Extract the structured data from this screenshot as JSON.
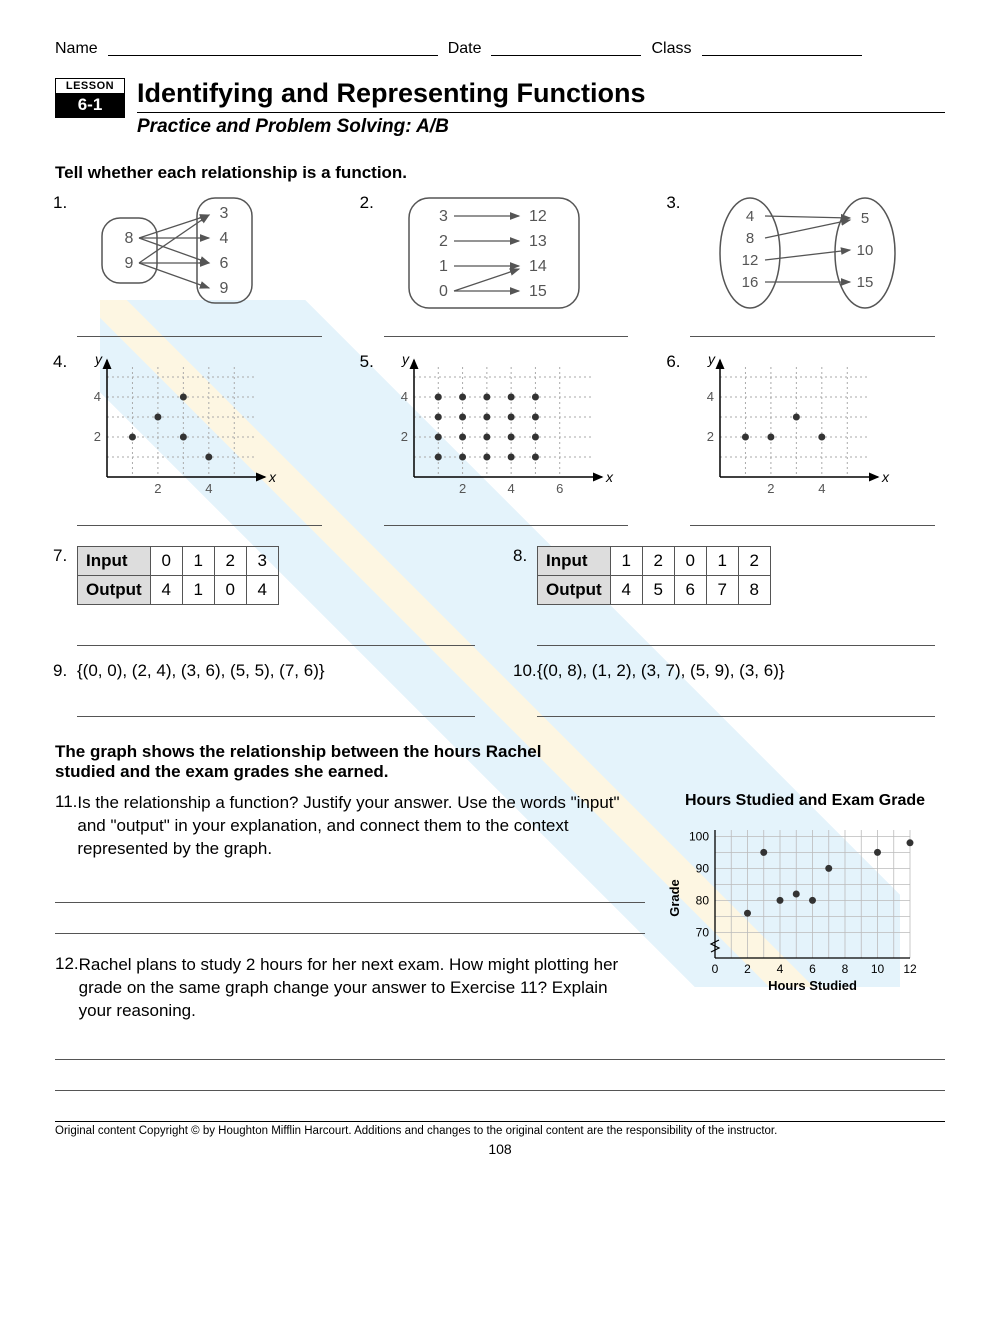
{
  "header": {
    "name_label": "Name",
    "date_label": "Date",
    "class_label": "Class"
  },
  "lesson": {
    "badge_top": "LESSON",
    "badge_num": "6-1",
    "title": "Identifying and Representing Functions",
    "subtitle": "Practice and Problem Solving: A/B"
  },
  "section1_heading": "Tell whether each relationship is a function.",
  "map1": {
    "left": [
      "8",
      "9"
    ],
    "right": [
      "3",
      "4",
      "6",
      "9"
    ]
  },
  "map2": {
    "left": [
      "3",
      "2",
      "1",
      "0"
    ],
    "right": [
      "12",
      "13",
      "14",
      "15"
    ]
  },
  "map3": {
    "left": [
      "4",
      "8",
      "12",
      "16"
    ],
    "right": [
      "5",
      "10",
      "15"
    ]
  },
  "graph4": {
    "yticks": [
      "4",
      "2"
    ],
    "xticks": [
      "2",
      "4"
    ],
    "points": [
      [
        1,
        2
      ],
      [
        2,
        3
      ],
      [
        3,
        4
      ],
      [
        3,
        2
      ],
      [
        4,
        1
      ]
    ],
    "xlim": 5.5,
    "ylim": 5.5
  },
  "graph5": {
    "yticks": [
      "4",
      "2"
    ],
    "xticks": [
      "2",
      "4",
      "6"
    ],
    "points": [
      [
        1,
        1
      ],
      [
        2,
        1
      ],
      [
        3,
        1
      ],
      [
        4,
        1
      ],
      [
        5,
        1
      ],
      [
        1,
        2
      ],
      [
        2,
        2
      ],
      [
        3,
        2
      ],
      [
        4,
        2
      ],
      [
        5,
        2
      ],
      [
        1,
        3
      ],
      [
        2,
        3
      ],
      [
        3,
        3
      ],
      [
        4,
        3
      ],
      [
        5,
        3
      ],
      [
        1,
        4
      ],
      [
        2,
        4
      ],
      [
        3,
        4
      ],
      [
        4,
        4
      ],
      [
        5,
        4
      ]
    ],
    "xlim": 7,
    "ylim": 5.5
  },
  "graph6": {
    "yticks": [
      "4",
      "2"
    ],
    "xticks": [
      "2",
      "4"
    ],
    "points": [
      [
        1,
        2
      ],
      [
        2,
        2
      ],
      [
        3,
        3
      ],
      [
        4,
        2
      ]
    ],
    "xlim": 5.5,
    "ylim": 5.5
  },
  "table7": {
    "input_label": "Input",
    "output_label": "Output",
    "inputs": [
      "0",
      "1",
      "2",
      "3"
    ],
    "outputs": [
      "4",
      "1",
      "0",
      "4"
    ]
  },
  "table8": {
    "input_label": "Input",
    "output_label": "Output",
    "inputs": [
      "1",
      "2",
      "0",
      "1",
      "2"
    ],
    "outputs": [
      "4",
      "5",
      "6",
      "7",
      "8"
    ]
  },
  "q9": "{(0, 0), (2, 4), (3, 6), (5, 5), (7, 6)}",
  "q10": "{(0, 8), (1, 2), (3, 7), (5, 9), (3, 6)}",
  "section2_heading": "The graph shows the relationship between the hours Rachel studied and the exam grades she earned.",
  "q11": "Is the relationship a function? Justify your answer. Use the words \"input\" and \"output\" in your explanation, and connect them to the context represented by the graph.",
  "q12": "Rachel plans to study 2 hours for her next exam. How might plotting her grade on the same graph change your answer to Exercise 11? Explain your reasoning.",
  "studychart": {
    "title": "Hours Studied and Exam Grade",
    "xlabel": "Hours Studied",
    "ylabel": "Grade",
    "xticks": [
      "0",
      "2",
      "4",
      "6",
      "8",
      "10",
      "12"
    ],
    "yticks": [
      "70",
      "80",
      "90",
      "100"
    ],
    "points": [
      [
        2,
        76
      ],
      [
        3,
        95
      ],
      [
        4,
        80
      ],
      [
        5,
        82
      ],
      [
        6,
        80
      ],
      [
        7,
        90
      ],
      [
        10,
        95
      ],
      [
        12,
        98
      ]
    ],
    "xlim": [
      0,
      12
    ],
    "ylim": [
      62,
      102
    ],
    "ybreak": true
  },
  "qlabels": {
    "q1": "1.",
    "q2": "2.",
    "q3": "3.",
    "q4": "4.",
    "q5": "5.",
    "q6": "6.",
    "q7": "7.",
    "q8": "8.",
    "q9": "9.",
    "q10": "10.",
    "q11": "11.",
    "q12": "12."
  },
  "axis": {
    "x": "x",
    "y": "y"
  },
  "footer": "Original content Copyright © by Houghton Mifflin Harcourt. Additions and changes to the original content are the responsibility of the instructor.",
  "pagenum": "108"
}
